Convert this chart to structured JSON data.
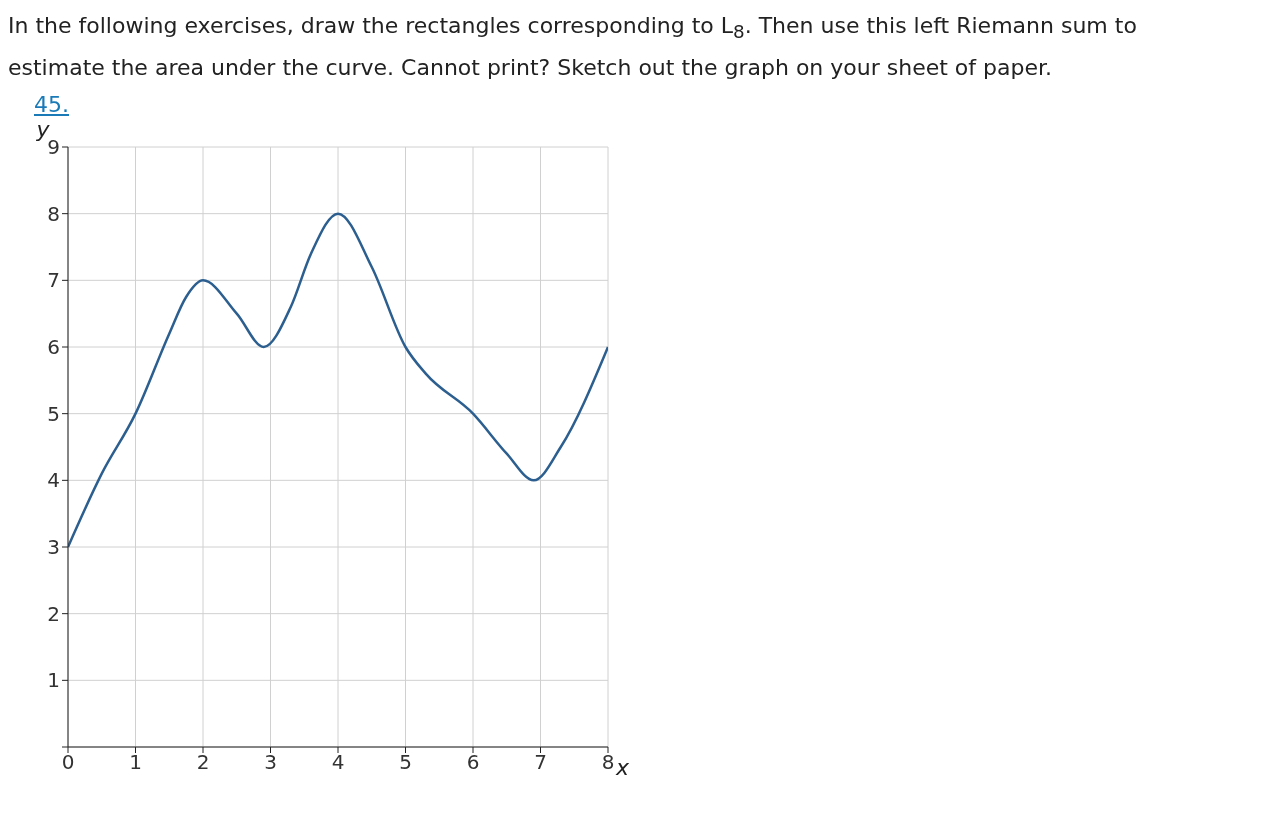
{
  "chart_data": {
    "type": "line",
    "title": "In the following exercises, draw the rectangles corresponding to L$_{8}$. Then use this left Riemann sum to estimate the area under the curve. Cannot print? Sketch out the graph on your sheet of paper.",
    "annotations": [
      "45."
    ],
    "xlabel": "x",
    "ylabel": "y",
    "x": [
      0,
      0.5,
      1,
      1.5,
      1.75,
      2,
      2.5,
      2.9,
      3.3,
      3.6,
      4,
      4.5,
      5,
      5.3,
      6,
      6.5,
      6.9,
      7.3,
      8
    ],
    "series": [
      {
        "color": "#2c5f8f",
        "values": [
          3,
          4.1,
          5,
          6.2,
          6.75,
          7,
          6.5,
          6,
          6.6,
          7.4,
          8,
          7.2,
          6,
          5.6,
          5,
          4.4,
          4,
          4.5,
          6
        ]
      }
    ],
    "xlim": [
      0,
      8
    ],
    "ylim": [
      0,
      9
    ],
    "xticks": [
      0,
      1,
      2,
      3,
      4,
      5,
      6,
      7,
      8
    ],
    "yticks": [
      {
        "value": 0,
        "label": null
      },
      1,
      2,
      3,
      4,
      5,
      6,
      7,
      8,
      9
    ],
    "grid": true,
    "marker": "none",
    "line_style": "solid"
  }
}
